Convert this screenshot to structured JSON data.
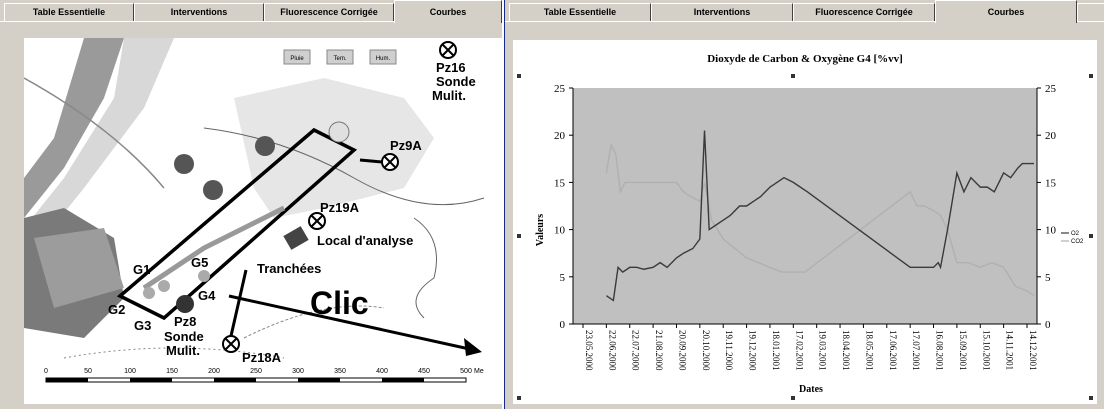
{
  "left_window": {
    "tabs": [
      "Table Essentielle",
      "Interventions",
      "Fluorescence Corrigée",
      "Courbes"
    ],
    "active_tab": "Courbes",
    "map": {
      "buttons": [
        "Pluie",
        "Tem.",
        "Hum."
      ],
      "labels": {
        "pz16": "Pz16",
        "pz16_sonde": "Sonde",
        "pz16_mulit": "Mulit.",
        "pz9a": "Pz9A",
        "pz19a": "Pz19A",
        "local": "Local d'analyse",
        "tranchees": "Tranchées",
        "g1": "G1",
        "g5": "G5",
        "g4": "G4",
        "g2": "G2",
        "g3": "G3",
        "pz8": "Pz8",
        "pz8_sonde": "Sonde",
        "pz8_mulit": "Mulit.",
        "pz18a": "Pz18A",
        "clic": "Clic"
      },
      "scale_ticks": [
        "0",
        "50",
        "100",
        "150",
        "200",
        "250",
        "300",
        "350",
        "400",
        "450",
        "500"
      ],
      "scale_unit": "Me"
    }
  },
  "right_window": {
    "tabs": [
      "Table Essentielle",
      "Interventions",
      "Fluorescence Corrigée",
      "Courbes"
    ],
    "active_tab": "Courbes",
    "colors": {
      "o2": "#3a3a3a",
      "co2": "#b0b0b0"
    }
  },
  "chart_data": {
    "type": "line",
    "title": "Dioxyde de Carbon & Oxygène G4 [%vv]",
    "xlabel": "Dates",
    "ylabel": "Valeurs",
    "ylim": [
      0,
      25
    ],
    "yticks": [
      "0",
      "5",
      "10",
      "15",
      "20",
      "25"
    ],
    "categories": [
      "23.05.2000",
      "22.06.2000",
      "22.07.2000",
      "21.08.2000",
      "20.09.2000",
      "20.10.2000",
      "19.11.2000",
      "19.12.2000",
      "18.01.2001",
      "17.02.2001",
      "19.03.2001",
      "18.04.2001",
      "18.05.2001",
      "17.06.2001",
      "17.07.2001",
      "16.08.2001",
      "15.09.2001",
      "15.10.2001",
      "14.11.2001",
      "14.12.2001"
    ],
    "legend_position": "right",
    "grid": false,
    "series": [
      {
        "name": "O2",
        "x": [
          1.0,
          1.3,
          1.5,
          1.7,
          2.0,
          2.3,
          2.6,
          3.0,
          3.3,
          3.6,
          4.0,
          4.3,
          4.7,
          5.0,
          5.2,
          5.4,
          5.7,
          6.0,
          6.3,
          6.5,
          6.7,
          7.0,
          7.3,
          7.6,
          8.0,
          8.3,
          8.6,
          9.0,
          9.3,
          9.6,
          14.0,
          14.5,
          15.0,
          15.2,
          15.3,
          15.6,
          16.0,
          16.3,
          16.6,
          17.0,
          17.3,
          17.6,
          18.0,
          18.3,
          18.6,
          18.8,
          19.0,
          19.3
        ],
        "y": [
          3,
          2.5,
          6,
          5.5,
          6,
          6,
          5.8,
          6,
          6.5,
          6,
          7,
          7.5,
          8,
          9,
          20.5,
          10,
          10.5,
          11,
          11.5,
          12,
          12.5,
          12.5,
          13,
          13.5,
          14.5,
          15,
          15.5,
          15,
          14.5,
          14,
          6,
          6,
          6,
          6.5,
          6,
          10,
          16,
          14,
          15.5,
          14.5,
          14.5,
          14,
          16,
          15.5,
          16.5,
          17,
          17,
          17
        ]
      },
      {
        "name": "CO2",
        "x": [
          1.0,
          1.2,
          1.4,
          1.6,
          1.8,
          2.0,
          2.5,
          3.0,
          3.5,
          4.0,
          4.3,
          4.6,
          5.0,
          5.2,
          5.5,
          6.0,
          6.5,
          7.0,
          7.5,
          8.0,
          8.5,
          9.0,
          9.5,
          14.0,
          14.3,
          14.6,
          15.0,
          15.3,
          15.6,
          16.0,
          16.5,
          17.0,
          17.5,
          18.0,
          18.5,
          19.0,
          19.3
        ],
        "y": [
          16,
          19,
          18,
          14,
          15,
          15,
          15,
          15,
          15,
          15,
          14,
          13.5,
          13,
          15,
          11,
          9,
          8,
          7,
          6.5,
          6,
          5.5,
          5.5,
          5.5,
          14,
          12.5,
          12.5,
          12,
          11.5,
          10,
          6.5,
          6.5,
          6,
          6.5,
          6,
          4,
          3.5,
          3
        ]
      }
    ]
  }
}
